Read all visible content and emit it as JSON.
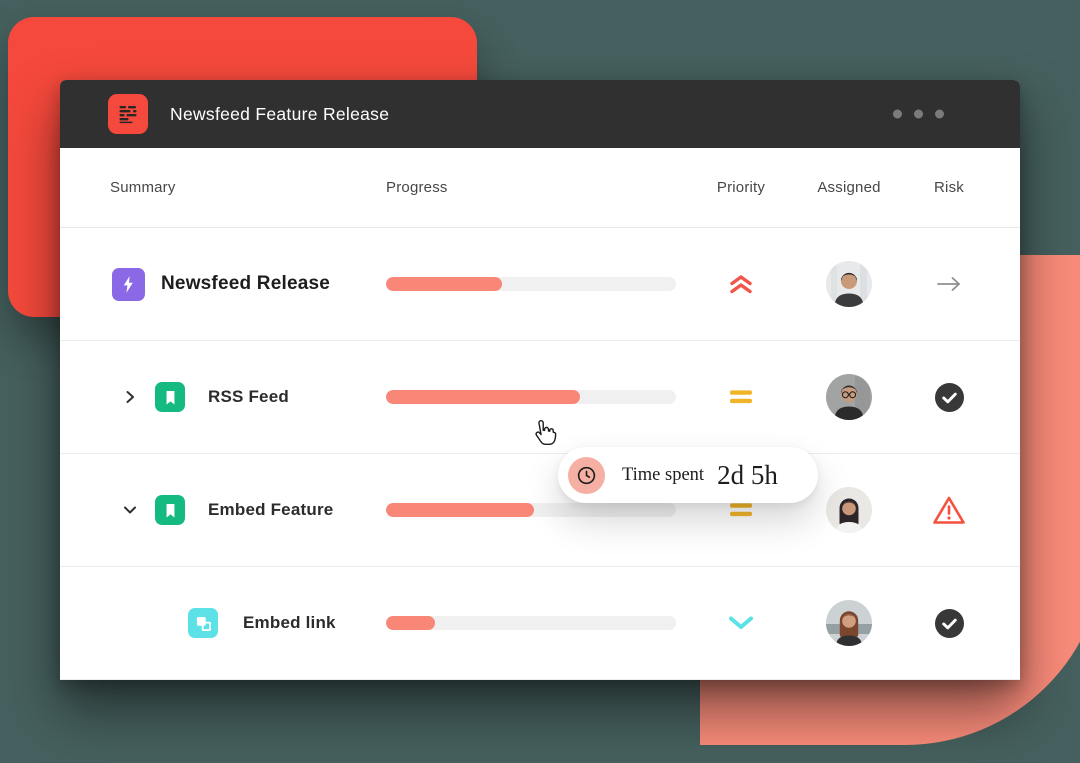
{
  "window": {
    "title": "Newsfeed Feature Release",
    "logo_icon": "newsfeed-logo-icon",
    "menu_dots": 3
  },
  "table": {
    "columns": {
      "summary": "Summary",
      "progress": "Progress",
      "priority": "Priority",
      "assigned": "Assigned",
      "risk": "Risk"
    },
    "rows": [
      {
        "title": "Newsfeed Release",
        "type_icon": "lightning-icon",
        "type_icon_color": "#8B69E6",
        "expand_icon": null,
        "indent": 0,
        "progress_pct": 40,
        "priority": "highest",
        "priority_icon": "double-chevron-up-icon",
        "assignee_avatar": "man-dark-hair-photo",
        "risk": "pending",
        "risk_icon": "arrow-right-icon"
      },
      {
        "title": "RSS Feed",
        "type_icon": "bookmark-icon",
        "type_icon_color": "#15BA81",
        "expand_icon": "chevron-right-icon",
        "indent": 1,
        "progress_pct": 67,
        "priority": "medium",
        "priority_icon": "equals-icon",
        "assignee_avatar": "man-glasses-photo",
        "risk": "done",
        "risk_icon": "check-circle-icon"
      },
      {
        "title": "Embed Feature",
        "type_icon": "bookmark-icon",
        "type_icon_color": "#15BA81",
        "expand_icon": "chevron-down-icon",
        "indent": 1,
        "progress_pct": 51,
        "priority": "medium",
        "priority_icon": "equals-icon",
        "assignee_avatar": "woman-dark-hair-photo",
        "risk": "at-risk",
        "risk_icon": "warning-triangle-icon"
      },
      {
        "title": "Embed link",
        "type_icon": "copy-icon",
        "type_icon_color": "#5CE1E6",
        "expand_icon": null,
        "indent": 2,
        "progress_pct": 17,
        "priority": "low",
        "priority_icon": "chevron-down-icon",
        "assignee_avatar": "woman-auburn-hair-photo",
        "risk": "done",
        "risk_icon": "check-circle-icon"
      }
    ]
  },
  "tooltip": {
    "icon": "clock-icon",
    "label": "Time spent",
    "value": "2d 5h"
  },
  "overlay": {
    "cursor_icon": "hand-pointer-icon"
  },
  "colors": {
    "background_teal": "#45605E",
    "decor_red": "#F4493C",
    "decor_coral": "#F98B7A",
    "titlebar": "#303030",
    "progress_fill": "#F98778",
    "progress_track": "#F1F0F0",
    "priority_highest": "#F2564A",
    "priority_medium": "#F0B429",
    "priority_low": "#5CE1E6",
    "risk_warning": "#F4513E",
    "done_circle": "#383838",
    "purple": "#8B69E6",
    "green": "#15BA81",
    "cyan": "#5CE1E6",
    "tooltip_clock_bg": "#F5AFA3"
  }
}
